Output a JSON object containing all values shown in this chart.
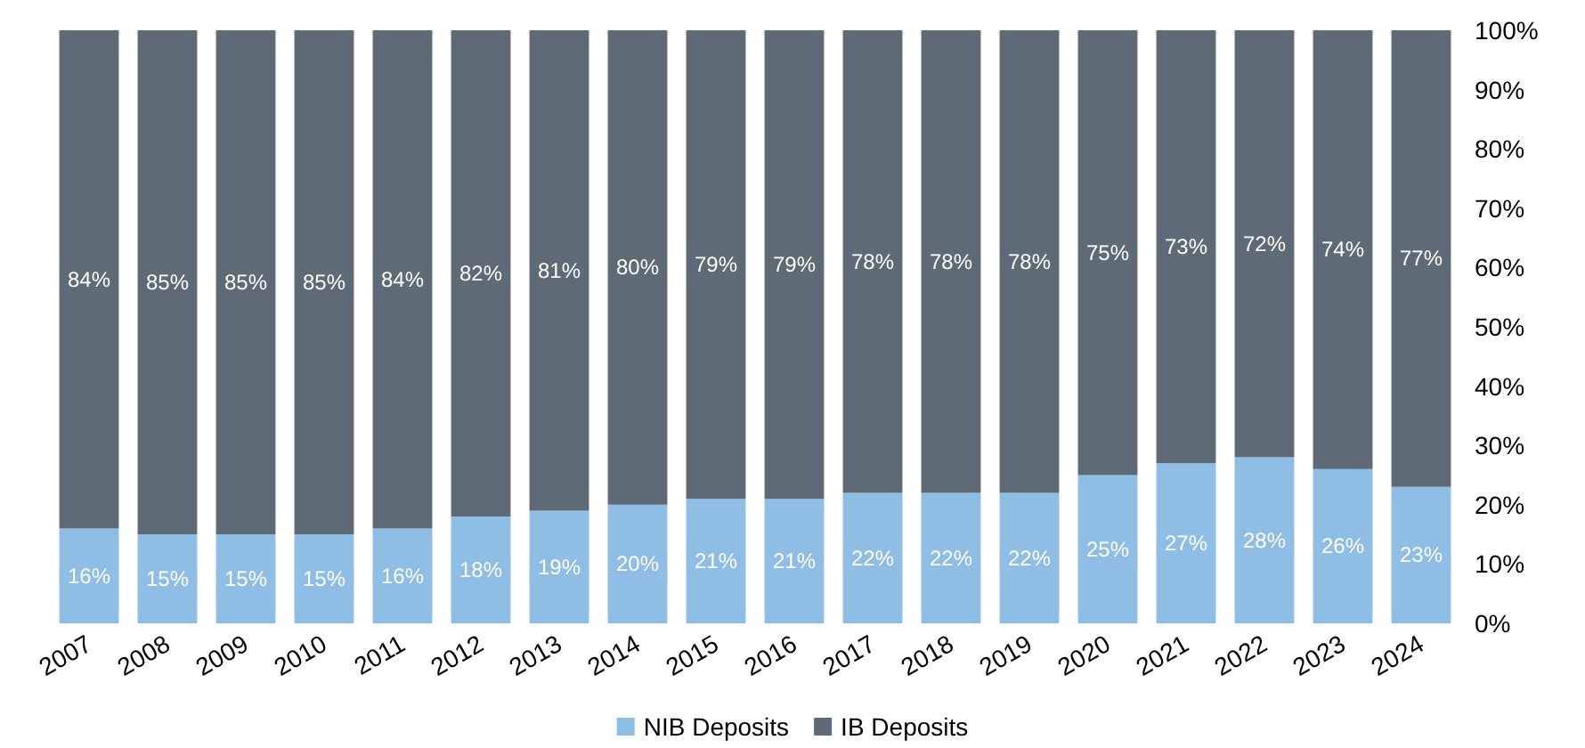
{
  "chart_data": {
    "type": "bar",
    "stacked": true,
    "categories": [
      "2007",
      "2008",
      "2009",
      "2010",
      "2011",
      "2012",
      "2013",
      "2014",
      "2015",
      "2016",
      "2017",
      "2018",
      "2019",
      "2020",
      "2021",
      "2022",
      "2023",
      "2024"
    ],
    "series": [
      {
        "name": "NIB Deposits",
        "color": "#8ebde6",
        "values": [
          16,
          15,
          15,
          15,
          16,
          18,
          19,
          20,
          21,
          21,
          22,
          22,
          22,
          25,
          27,
          28,
          26,
          23
        ],
        "value_labels": [
          "16%",
          "15%",
          "15%",
          "15%",
          "16%",
          "18%",
          "19%",
          "20%",
          "21%",
          "21%",
          "22%",
          "22%",
          "22%",
          "25%",
          "27%",
          "28%",
          "26%",
          "23%"
        ]
      },
      {
        "name": "IB Deposits",
        "color": "#5e6a75",
        "values": [
          84,
          85,
          85,
          85,
          84,
          82,
          81,
          80,
          79,
          79,
          78,
          78,
          78,
          75,
          73,
          72,
          74,
          77
        ],
        "value_labels": [
          "84%",
          "85%",
          "85%",
          "85%",
          "84%",
          "82%",
          "81%",
          "80%",
          "79%",
          "79%",
          "78%",
          "78%",
          "78%",
          "75%",
          "73%",
          "72%",
          "74%",
          "77%"
        ]
      }
    ],
    "ylim": [
      0,
      100
    ],
    "yticks": [
      {
        "value": 0,
        "label": "0%"
      },
      {
        "value": 10,
        "label": "10%"
      },
      {
        "value": 20,
        "label": "20%"
      },
      {
        "value": 30,
        "label": "30%"
      },
      {
        "value": 40,
        "label": "40%"
      },
      {
        "value": 50,
        "label": "50%"
      },
      {
        "value": 60,
        "label": "60%"
      },
      {
        "value": 70,
        "label": "70%"
      },
      {
        "value": 80,
        "label": "80%"
      },
      {
        "value": 90,
        "label": "90%"
      },
      {
        "value": 100,
        "label": "100%"
      }
    ],
    "grid": false,
    "legend": "bottom"
  }
}
